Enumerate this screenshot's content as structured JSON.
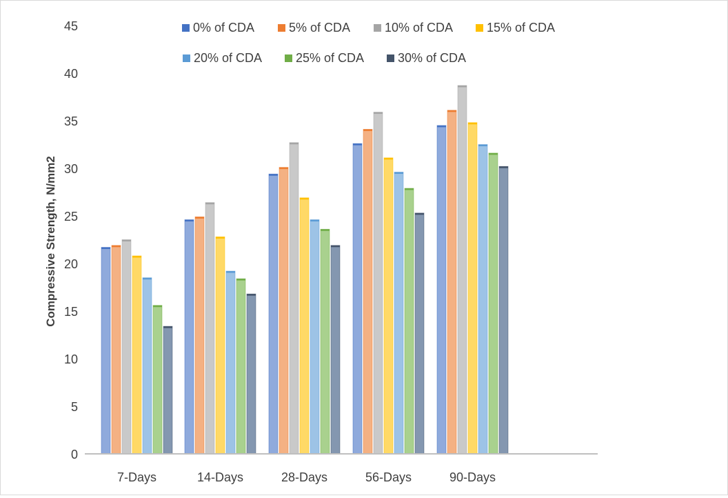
{
  "chart_data": {
    "type": "bar",
    "title": "",
    "xlabel": "",
    "ylabel": "Compressive Strength, N/mm2",
    "ylim": [
      0,
      45
    ],
    "yticks": [
      0,
      5,
      10,
      15,
      20,
      25,
      30,
      35,
      40,
      45
    ],
    "grid": false,
    "legend_position": "top",
    "categories": [
      "7-Days",
      "14-Days",
      "28-Days",
      "56-Days",
      "90-Days"
    ],
    "series": [
      {
        "name": "0% of CDA",
        "color": "#8faadc",
        "legend_color": "#4472c4",
        "values": [
          21.7,
          24.6,
          29.4,
          32.6,
          34.5
        ]
      },
      {
        "name": "5% of CDA",
        "color": "#f4b183",
        "legend_color": "#ed7d31",
        "values": [
          21.9,
          24.9,
          30.1,
          34.1,
          36.1
        ]
      },
      {
        "name": "10% of CDA",
        "color": "#c9c9c9",
        "legend_color": "#a5a5a5",
        "values": [
          22.5,
          26.4,
          32.7,
          35.9,
          38.7
        ]
      },
      {
        "name": "15% of CDA",
        "color": "#ffd966",
        "legend_color": "#ffc000",
        "values": [
          20.8,
          22.8,
          26.9,
          31.1,
          34.8
        ]
      },
      {
        "name": "20% of CDA",
        "color": "#9dc3e6",
        "legend_color": "#5b9bd5",
        "values": [
          18.5,
          19.2,
          24.6,
          29.6,
          32.5
        ]
      },
      {
        "name": "25% of CDA",
        "color": "#a9d18e",
        "legend_color": "#70ad47",
        "values": [
          15.6,
          18.4,
          23.6,
          27.9,
          31.6
        ]
      },
      {
        "name": "30% of CDA",
        "color": "#8497b0",
        "legend_color": "#44546a",
        "values": [
          13.4,
          16.8,
          21.9,
          25.3,
          30.2
        ]
      }
    ]
  }
}
